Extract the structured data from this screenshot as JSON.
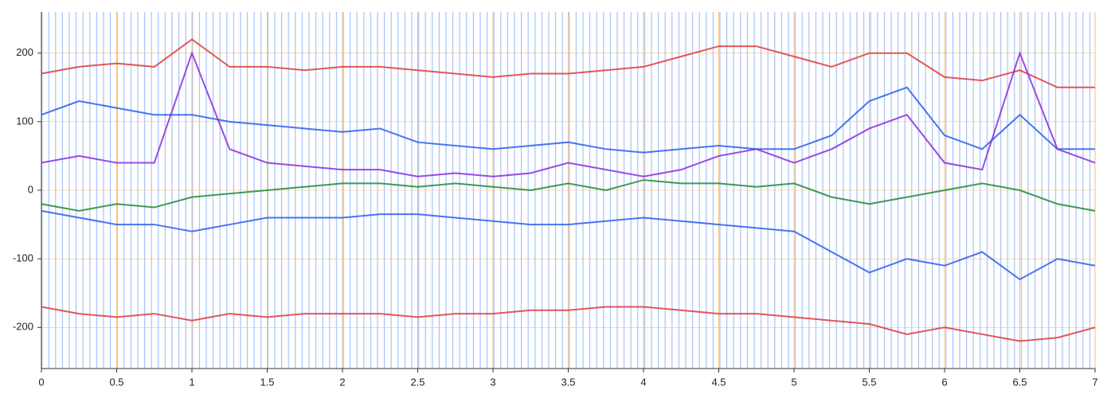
{
  "chart_data": {
    "type": "line",
    "x": [
      0,
      0.25,
      0.5,
      0.75,
      1,
      1.25,
      1.5,
      1.75,
      2,
      2.25,
      2.5,
      2.75,
      3,
      3.25,
      3.5,
      3.75,
      4,
      4.25,
      4.5,
      4.75,
      5,
      5.25,
      5.5,
      5.75,
      6,
      6.25,
      6.5,
      6.75,
      7
    ],
    "series": [
      {
        "color": "#e03a3a",
        "values": [
          170,
          180,
          185,
          180,
          220,
          180,
          180,
          175,
          180,
          180,
          175,
          170,
          165,
          170,
          170,
          175,
          180,
          195,
          210,
          210,
          195,
          180,
          200,
          200,
          165,
          160,
          175,
          150,
          150
        ]
      },
      {
        "color": "#e03a3a",
        "values": [
          -170,
          -180,
          -185,
          -180,
          -190,
          -180,
          -185,
          -180,
          -180,
          -180,
          -185,
          -180,
          -180,
          -175,
          -175,
          -170,
          -170,
          -175,
          -180,
          -180,
          -185,
          -190,
          -195,
          -210,
          -200,
          -210,
          -220,
          -215,
          -200
        ]
      },
      {
        "color": "#2a5cf0",
        "values": [
          110,
          130,
          120,
          110,
          110,
          100,
          95,
          90,
          85,
          90,
          70,
          65,
          60,
          65,
          70,
          60,
          55,
          60,
          65,
          60,
          60,
          80,
          130,
          150,
          80,
          60,
          110,
          60,
          60
        ]
      },
      {
        "color": "#2a5cf0",
        "values": [
          -30,
          -40,
          -50,
          -50,
          -60,
          -50,
          -40,
          -40,
          -40,
          -35,
          -35,
          -40,
          -45,
          -50,
          -50,
          -45,
          -40,
          -45,
          -50,
          -55,
          -60,
          -90,
          -120,
          -100,
          -110,
          -90,
          -130,
          -100,
          -110
        ]
      },
      {
        "color": "#8a2be2",
        "values": [
          40,
          50,
          40,
          40,
          200,
          60,
          40,
          35,
          30,
          30,
          20,
          25,
          20,
          25,
          40,
          30,
          20,
          30,
          50,
          60,
          40,
          60,
          90,
          110,
          40,
          30,
          200,
          60,
          40
        ]
      },
      {
        "color": "#1e8a2e",
        "values": [
          -20,
          -30,
          -20,
          -25,
          -10,
          -5,
          0,
          5,
          10,
          10,
          5,
          10,
          5,
          0,
          10,
          0,
          15,
          10,
          10,
          5,
          10,
          -10,
          -20,
          -10,
          0,
          10,
          0,
          -20,
          -30
        ]
      }
    ],
    "xlim": [
      0,
      7
    ],
    "xticks": [
      0,
      0.5,
      1,
      1.5,
      2,
      2.5,
      3,
      3.5,
      4,
      4.5,
      5,
      5.5,
      6,
      6.5,
      7
    ],
    "ylim": [
      -260,
      260
    ],
    "yticks": [
      -200,
      -100,
      0,
      100,
      200
    ],
    "grid": true,
    "grid_color": "#f0c080"
  }
}
